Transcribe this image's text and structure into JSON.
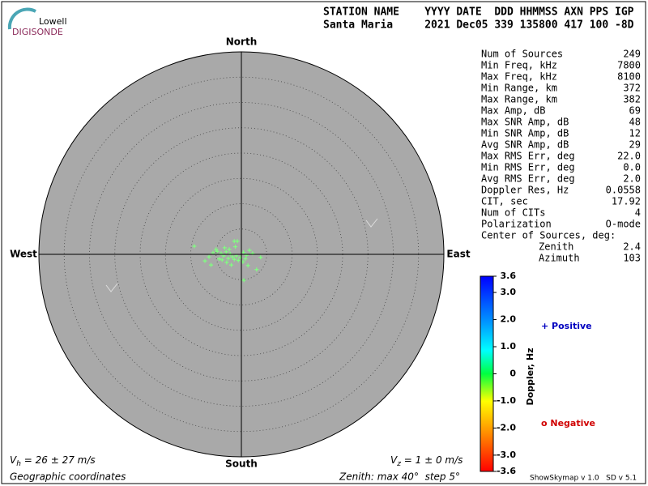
{
  "logo": {
    "top": "Lowell",
    "bottom": "DIGISONDE"
  },
  "header": {
    "line1": "STATION NAME    YYYY DATE  DDD HHMMSS AXN PPS IGP",
    "line2": "Santa Maria     2021 Dec05 339 135800 417 100 -8D"
  },
  "stats": {
    "rows": [
      [
        "Num of Sources",
        "249"
      ],
      [
        "Min Freq, kHz",
        "7800"
      ],
      [
        "Max Freq, kHz",
        "8100"
      ],
      [
        "Min Range, km",
        "372"
      ],
      [
        "Max Range, km",
        "382"
      ],
      [
        "Max Amp, dB",
        "69"
      ],
      [
        "Max SNR Amp, dB",
        "48"
      ],
      [
        "Min SNR Amp, dB",
        "12"
      ],
      [
        "Avg SNR Amp, dB",
        "29"
      ],
      [
        "Max RMS Err, deg",
        "22.0"
      ],
      [
        "Min RMS Err, deg",
        "0.0"
      ],
      [
        "Avg RMS Err, deg",
        "2.0"
      ],
      [
        "Doppler Res, Hz",
        "0.0558"
      ],
      [
        "CIT, sec",
        "17.92"
      ],
      [
        "Num of CITs",
        "4"
      ],
      [
        "Polarization",
        "O-mode"
      ]
    ],
    "center_title": "Center of Sources, deg:",
    "center_rows": [
      [
        "Zenith",
        "2.4"
      ],
      [
        "Azimuth",
        "103"
      ]
    ]
  },
  "chart_data": {
    "type": "polar-scatter",
    "directions": {
      "north": "North",
      "south": "South",
      "west": "West",
      "east": "East"
    },
    "x": [
      -9.3,
      -1.4,
      -0.8,
      1.6,
      0.5,
      3.0,
      3.8,
      -7.2,
      -6.4,
      -5.6,
      -4.8,
      -4.0,
      -3.5,
      -3.0,
      -2.6,
      -2.2,
      -1.8,
      -1.4,
      -1.0,
      -0.6,
      -0.2,
      0.3,
      0.8,
      -3.8,
      -4.4,
      -2.9,
      -2.0,
      1.3,
      -5.0,
      -3.3,
      -2.4,
      0.4,
      1.0,
      2.2,
      -1.2,
      -6.0
    ],
    "y": [
      1.6,
      2.6,
      2.6,
      0.8,
      -5.1,
      -3.0,
      -0.6,
      -1.3,
      -0.5,
      0.3,
      0.6,
      0.2,
      -0.3,
      0.5,
      -0.8,
      0.1,
      -0.5,
      -1.0,
      -0.3,
      -1.2,
      -0.6,
      -1.5,
      -0.9,
      -1.1,
      -0.9,
      -1.6,
      -2.1,
      -2.2,
      1.0,
      1.3,
      1.0,
      0.4,
      -0.2,
      0.2,
      1.5,
      -2.1
    ],
    "color": "#80ff80",
    "rlim": [
      0,
      40
    ],
    "rticks": [
      5,
      10,
      15,
      20,
      25,
      30,
      35,
      40
    ],
    "colorbar": {
      "label": "Doppler, Hz",
      "lim": [
        -3.6,
        3.6
      ],
      "ticks": [
        3.6,
        {
          "value": 3.0,
          "label": "3.0"
        },
        {
          "value": 2.0,
          "label": "2.0"
        },
        {
          "value": 1.0,
          "label": "1.0"
        },
        0,
        {
          "value": -1.0,
          "label": "-1.0"
        },
        {
          "value": -2.0,
          "label": "-2.0"
        },
        {
          "value": -3.0,
          "label": "-3.0"
        },
        -3.6
      ]
    },
    "legend": {
      "positive": "+ Positive",
      "negative": "o Negative"
    }
  },
  "footer": {
    "vh": {
      "symbol": "V",
      "sub": "h",
      "text": " = 26 ± 27 m/s"
    },
    "vz": {
      "symbol": "V",
      "sub": "z",
      "text": " = 1 ± 0 m/s"
    },
    "coords": "Geographic coordinates",
    "zenith": "Zenith: max 40°  step 5°",
    "version": "ShowSkymap v 1.0   SD v 5.1"
  }
}
